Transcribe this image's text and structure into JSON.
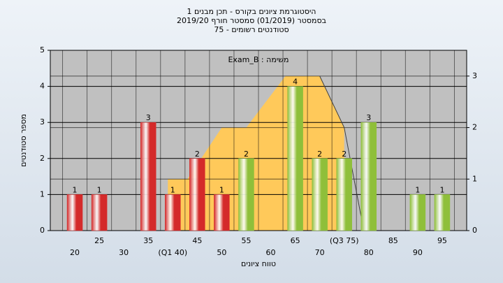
{
  "chart_data": {
    "type": "bar",
    "title": "היסטוגרמת ציונים בקורס - תכן מבנים 1",
    "subtitle": "בסמסטר  (01/2019)  סמסטר חורף 2019/20",
    "subtitle2": "סטודנטים רשומים - 75",
    "annotation": "משימה : Exam_B",
    "x_label": "טווח ציונים",
    "y_label": "מספר סטודנטים",
    "categories": [
      "20",
      "25",
      "30",
      "35",
      "(Q1 40)",
      "45",
      "50",
      "55",
      "60",
      "65",
      "70",
      "(Q3 75)",
      "80",
      "85",
      "90",
      "95"
    ],
    "values": [
      1,
      1,
      0,
      3,
      1,
      2,
      1,
      2,
      0,
      4,
      2,
      2,
      3,
      0,
      1,
      1
    ],
    "colors": [
      "#d42a2a",
      "#d42a2a",
      "#d42a2a",
      "#d42a2a",
      "#d42a2a",
      "#d42a2a",
      "#d42a2a",
      "#8fbf3a",
      "#8fbf3a",
      "#8fbf3a",
      "#8fbf3a",
      "#8fbf3a",
      "#8fbf3a",
      "#8fbf3a",
      "#8fbf3a",
      "#8fbf3a"
    ],
    "ylim": [
      0,
      5
    ],
    "yticks": [
      0,
      1,
      2,
      3,
      4,
      5
    ],
    "y2lim": [
      0,
      3.5
    ],
    "y2ticks": [
      0,
      1,
      2,
      3
    ],
    "xlim": [
      15,
      100
    ],
    "area": {
      "color": "#ffc95a",
      "axis": "y2",
      "x": [
        39,
        39,
        43,
        50,
        55,
        63,
        70,
        75,
        75
      ],
      "values": [
        0,
        1,
        1,
        2,
        2,
        3,
        3,
        2,
        0
      ]
    },
    "line": {
      "color": "#404040",
      "axis": "y2",
      "x": [
        70,
        75,
        79
      ],
      "values": [
        3,
        2,
        0
      ]
    },
    "grid": true
  }
}
